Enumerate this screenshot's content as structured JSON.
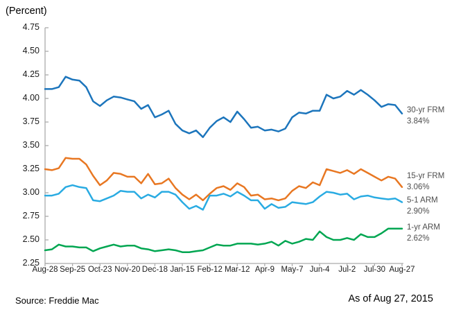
{
  "header": {
    "y_axis_unit": "(Percent)"
  },
  "footer": {
    "source": "Source: Freddie Mac",
    "as_of": "As of Aug 27, 2015"
  },
  "chart_data": {
    "type": "line",
    "title": "",
    "xlabel": "",
    "ylabel": "(Percent)",
    "grid": false,
    "legend_position": "right of line ends",
    "axis_color": "#ababab",
    "ylim": [
      2.25,
      4.75
    ],
    "y_tick_step": 0.25,
    "y_tick_labels": [
      "4.75",
      "4.50",
      "4.25",
      "4.00",
      "3.75",
      "3.50",
      "3.25",
      "3.00",
      "2.75",
      "2.50",
      "2.25"
    ],
    "x_tick_labels": [
      "Aug-28",
      "Sep-25",
      "Oct-23",
      "Nov-20",
      "Dec-18",
      "Jan-15",
      "Feb-12",
      "Mar-12",
      "Apr-9",
      "May-7",
      "Jun-4",
      "Jul-2",
      "Jul-30",
      "Aug-27"
    ],
    "x_tick_indices": [
      0,
      4,
      8,
      12,
      16,
      20,
      24,
      28,
      32,
      36,
      40,
      44,
      48,
      52
    ],
    "categories": [
      "Aug-28",
      "Sep-4",
      "Sep-11",
      "Sep-18",
      "Sep-25",
      "Oct-2",
      "Oct-9",
      "Oct-16",
      "Oct-23",
      "Oct-30",
      "Nov-6",
      "Nov-13",
      "Nov-20",
      "Nov-26",
      "Dec-4",
      "Dec-11",
      "Dec-18",
      "Dec-24",
      "Dec-31",
      "Jan-8",
      "Jan-15",
      "Jan-22",
      "Jan-29",
      "Feb-5",
      "Feb-12",
      "Feb-19",
      "Feb-26",
      "Mar-5",
      "Mar-12",
      "Mar-19",
      "Mar-26",
      "Apr-2",
      "Apr-9",
      "Apr-16",
      "Apr-23",
      "Apr-30",
      "May-7",
      "May-14",
      "May-21",
      "May-28",
      "Jun-4",
      "Jun-11",
      "Jun-18",
      "Jun-25",
      "Jul-2",
      "Jul-9",
      "Jul-16",
      "Jul-23",
      "Jul-30",
      "Aug-6",
      "Aug-13",
      "Aug-20",
      "Aug-27"
    ],
    "series": [
      {
        "name": "30-yr FRM",
        "end_label": "3.84%",
        "color": "#1c75bc",
        "values": [
          4.1,
          4.1,
          4.12,
          4.23,
          4.2,
          4.19,
          4.12,
          3.97,
          3.92,
          3.98,
          4.02,
          4.01,
          3.99,
          3.97,
          3.89,
          3.93,
          3.8,
          3.83,
          3.87,
          3.73,
          3.66,
          3.63,
          3.66,
          3.59,
          3.69,
          3.76,
          3.8,
          3.75,
          3.86,
          3.78,
          3.69,
          3.7,
          3.66,
          3.67,
          3.65,
          3.68,
          3.8,
          3.85,
          3.84,
          3.87,
          3.87,
          4.04,
          4.0,
          4.02,
          4.08,
          4.04,
          4.09,
          4.04,
          3.98,
          3.91,
          3.94,
          3.93,
          3.84
        ]
      },
      {
        "name": "15-yr FRM",
        "end_label": "3.06%",
        "color": "#e87722",
        "values": [
          3.25,
          3.24,
          3.26,
          3.37,
          3.36,
          3.36,
          3.3,
          3.18,
          3.08,
          3.13,
          3.21,
          3.2,
          3.17,
          3.17,
          3.1,
          3.2,
          3.09,
          3.1,
          3.15,
          3.05,
          2.98,
          2.93,
          2.98,
          2.92,
          2.99,
          3.05,
          3.07,
          3.03,
          3.1,
          3.06,
          2.97,
          2.98,
          2.93,
          2.94,
          2.92,
          2.94,
          3.02,
          3.07,
          3.05,
          3.11,
          3.08,
          3.25,
          3.23,
          3.21,
          3.24,
          3.2,
          3.25,
          3.21,
          3.17,
          3.13,
          3.17,
          3.15,
          3.06
        ]
      },
      {
        "name": "5-1 ARM",
        "end_label": "2.90%",
        "color": "#29abe2",
        "values": [
          2.97,
          2.97,
          2.99,
          3.06,
          3.08,
          3.06,
          3.05,
          2.92,
          2.91,
          2.94,
          2.97,
          3.02,
          3.01,
          3.01,
          2.94,
          2.98,
          2.95,
          3.01,
          3.01,
          2.98,
          2.9,
          2.83,
          2.86,
          2.82,
          2.97,
          2.97,
          2.99,
          2.96,
          3.01,
          2.97,
          2.92,
          2.92,
          2.83,
          2.88,
          2.84,
          2.85,
          2.9,
          2.89,
          2.88,
          2.9,
          2.96,
          3.01,
          3.0,
          2.98,
          2.99,
          2.93,
          2.96,
          2.97,
          2.95,
          2.94,
          2.93,
          2.94,
          2.9
        ]
      },
      {
        "name": "1-yr ARM",
        "end_label": "2.62%",
        "color": "#00a651",
        "values": [
          2.39,
          2.4,
          2.45,
          2.43,
          2.43,
          2.42,
          2.42,
          2.38,
          2.41,
          2.43,
          2.45,
          2.43,
          2.44,
          2.44,
          2.41,
          2.4,
          2.38,
          2.39,
          2.4,
          2.39,
          2.37,
          2.37,
          2.38,
          2.39,
          2.42,
          2.45,
          2.44,
          2.44,
          2.46,
          2.46,
          2.46,
          2.45,
          2.46,
          2.48,
          2.44,
          2.49,
          2.46,
          2.48,
          2.51,
          2.5,
          2.59,
          2.53,
          2.5,
          2.5,
          2.52,
          2.5,
          2.56,
          2.53,
          2.53,
          2.57,
          2.62,
          2.62,
          2.62
        ]
      }
    ]
  }
}
